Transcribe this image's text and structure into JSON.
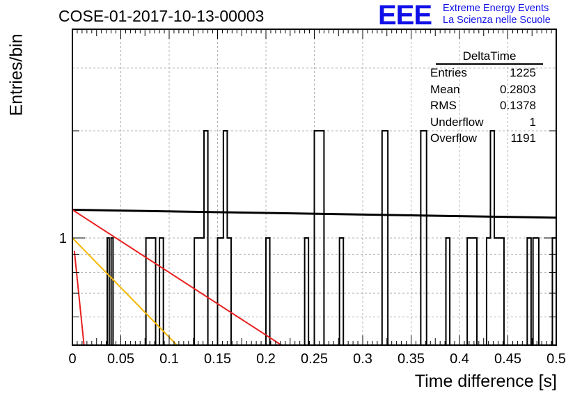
{
  "header": {
    "run_title": "COSE-01-2017-10-13-00003",
    "logo_mark": "EEE",
    "logo_line1": "Extreme Energy Events",
    "logo_line2": "La Scienza nelle Scuole"
  },
  "stats_box": {
    "name": "DeltaTime",
    "rows": [
      {
        "label": "Entries",
        "value": "1225"
      },
      {
        "label": "Mean",
        "value": "0.2803"
      },
      {
        "label": "RMS",
        "value": "0.1378"
      },
      {
        "label": "Underflow",
        "value": "1"
      },
      {
        "label": "Overflow",
        "value": "1191"
      }
    ]
  },
  "colors": {
    "histogram": "#000000",
    "fit_black": "#000000",
    "fit_red": "#e8201f",
    "fit_orange": "#f5b800",
    "grid": "#b0b0b0",
    "logo": "#1010e8"
  },
  "chart_data": {
    "type": "bar",
    "title": "",
    "xlabel": "Time difference [s]",
    "ylabel": "Entries/bin",
    "xlim": [
      0,
      0.5
    ],
    "log_y": true,
    "ylim_note": "log scale, only tick label 1 printed",
    "x_tick_labels": [
      "0",
      "0.05",
      "0.1",
      "0.15",
      "0.2",
      "0.25",
      "0.3",
      "0.35",
      "0.4",
      "0.45",
      "0.5"
    ],
    "y_tick_labels": [
      "1"
    ],
    "bin_width": 0.002,
    "histogram": [
      {
        "x0": 0.036,
        "x1": 0.038,
        "count": 1
      },
      {
        "x0": 0.038,
        "x1": 0.04,
        "count": 0.1
      },
      {
        "x0": 0.04,
        "x1": 0.042,
        "count": 1
      },
      {
        "x0": 0.076,
        "x1": 0.086,
        "count": 1
      },
      {
        "x0": 0.086,
        "x1": 0.09,
        "count": 0.1
      },
      {
        "x0": 0.09,
        "x1": 0.094,
        "count": 1
      },
      {
        "x0": 0.126,
        "x1": 0.136,
        "count": 1
      },
      {
        "x0": 0.136,
        "x1": 0.14,
        "count": 2
      },
      {
        "x0": 0.14,
        "x1": 0.142,
        "count": 0.1
      },
      {
        "x0": 0.142,
        "x1": 0.15,
        "count": 0.1
      },
      {
        "x0": 0.15,
        "x1": 0.156,
        "count": 1
      },
      {
        "x0": 0.156,
        "x1": 0.16,
        "count": 2
      },
      {
        "x0": 0.16,
        "x1": 0.164,
        "count": 1
      },
      {
        "x0": 0.2,
        "x1": 0.204,
        "count": 1
      },
      {
        "x0": 0.24,
        "x1": 0.244,
        "count": 1
      },
      {
        "x0": 0.25,
        "x1": 0.26,
        "count": 2
      },
      {
        "x0": 0.276,
        "x1": 0.28,
        "count": 1
      },
      {
        "x0": 0.32,
        "x1": 0.326,
        "count": 2
      },
      {
        "x0": 0.36,
        "x1": 0.366,
        "count": 2
      },
      {
        "x0": 0.386,
        "x1": 0.39,
        "count": 1
      },
      {
        "x0": 0.408,
        "x1": 0.418,
        "count": 1
      },
      {
        "x0": 0.428,
        "x1": 0.432,
        "count": 1
      },
      {
        "x0": 0.432,
        "x1": 0.436,
        "count": 2
      },
      {
        "x0": 0.436,
        "x1": 0.446,
        "count": 1
      },
      {
        "x0": 0.47,
        "x1": 0.474,
        "count": 1
      },
      {
        "x0": 0.476,
        "x1": 0.482,
        "count": 1
      },
      {
        "x0": 0.496,
        "x1": 0.5,
        "count": 1
      }
    ],
    "fits": [
      {
        "color": "black",
        "points": [
          [
            0,
            1.2
          ],
          [
            0.5,
            1.14
          ]
        ]
      },
      {
        "color": "red",
        "points": [
          [
            0,
            1.2
          ],
          [
            0.216,
            0.5
          ]
        ]
      },
      {
        "color": "orange",
        "points": [
          [
            0,
            1.0
          ],
          [
            0.108,
            0.5
          ]
        ]
      },
      {
        "color": "red",
        "points": [
          [
            0.002,
            0.92
          ],
          [
            0.012,
            0.5
          ]
        ]
      }
    ]
  }
}
